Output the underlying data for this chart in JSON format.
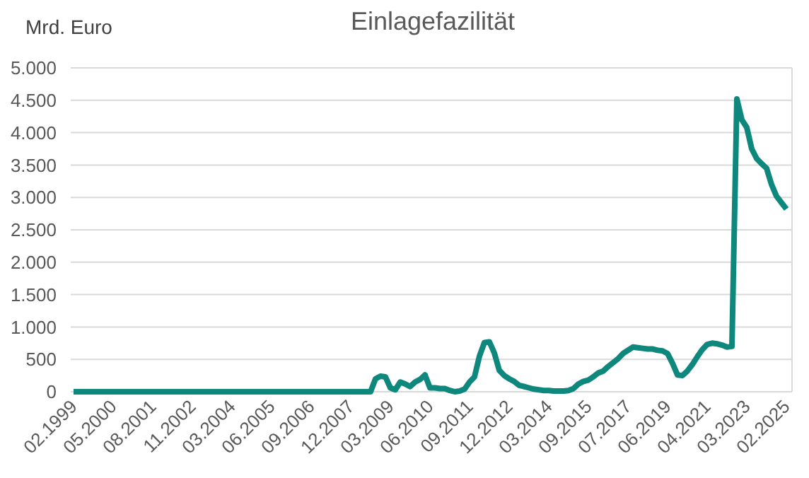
{
  "chart_data": {
    "type": "line",
    "title": "Einlagefazilität",
    "ylabel": "Mrd. Euro",
    "categories": [
      "02.1999",
      null,
      null,
      null,
      null,
      null,
      null,
      null,
      "05.2000",
      null,
      null,
      null,
      null,
      null,
      null,
      null,
      "08.2001",
      null,
      null,
      null,
      null,
      null,
      null,
      null,
      "11.2002",
      null,
      null,
      null,
      null,
      null,
      null,
      null,
      "03.2004",
      null,
      null,
      null,
      null,
      null,
      null,
      null,
      "06.2005",
      null,
      null,
      null,
      null,
      null,
      null,
      null,
      "09.2006",
      null,
      null,
      null,
      null,
      null,
      null,
      null,
      "12.2007",
      null,
      null,
      null,
      null,
      null,
      null,
      null,
      "03.2009",
      null,
      null,
      null,
      null,
      null,
      null,
      null,
      "06.2010",
      null,
      null,
      null,
      null,
      null,
      null,
      null,
      "09.2011",
      null,
      null,
      null,
      null,
      null,
      null,
      null,
      "12.2012",
      null,
      null,
      null,
      null,
      null,
      null,
      null,
      "03.2014",
      null,
      null,
      null,
      null,
      null,
      null,
      null,
      "09.2015",
      null,
      null,
      null,
      null,
      null,
      null,
      null,
      "07.2017",
      null,
      null,
      null,
      null,
      null,
      null,
      null,
      "06.2019",
      null,
      null,
      null,
      null,
      null,
      null,
      null,
      "04.2021",
      null,
      null,
      null,
      null,
      null,
      null,
      null,
      "03.2023",
      null,
      null,
      null,
      null,
      null,
      null,
      null,
      "02.2025"
    ],
    "series": [
      {
        "color": "#0e877c",
        "values": [
          0,
          0,
          0,
          0,
          0,
          0,
          0,
          0,
          0,
          0,
          0,
          0,
          0,
          0,
          0,
          0,
          0,
          0,
          0,
          0,
          0,
          0,
          0,
          0,
          0,
          0,
          0,
          0,
          0,
          0,
          0,
          0,
          0,
          0,
          0,
          0,
          0,
          0,
          0,
          0,
          0,
          0,
          0,
          0,
          0,
          0,
          0,
          0,
          0,
          0,
          0,
          0,
          0,
          0,
          0,
          0,
          0,
          0,
          0,
          0,
          0,
          200,
          240,
          230,
          60,
          30,
          150,
          120,
          80,
          150,
          190,
          260,
          60,
          60,
          50,
          50,
          20,
          0,
          10,
          40,
          150,
          230,
          550,
          760,
          770,
          600,
          330,
          250,
          200,
          160,
          100,
          80,
          60,
          40,
          30,
          20,
          20,
          10,
          10,
          10,
          20,
          50,
          120,
          160,
          180,
          230,
          290,
          320,
          390,
          450,
          510,
          590,
          640,
          690,
          680,
          670,
          660,
          660,
          640,
          630,
          590,
          440,
          260,
          250,
          320,
          420,
          540,
          650,
          730,
          750,
          740,
          720,
          690,
          700,
          4520,
          4200,
          4080,
          3750,
          3600,
          3520,
          3450,
          3200,
          3020,
          2920,
          2820
        ]
      }
    ],
    "ylim": [
      0,
      5000
    ],
    "yticks": [
      0,
      {
        "value": 500,
        "label": "500"
      },
      {
        "value": 1000,
        "label": "1.000"
      },
      {
        "value": 1500,
        "label": "1.500"
      },
      {
        "value": 2000,
        "label": "2.000"
      },
      {
        "value": 2500,
        "label": "2.500"
      },
      {
        "value": 3000,
        "label": "3.000"
      },
      {
        "value": 3500,
        "label": "3.500"
      },
      {
        "value": 4000,
        "label": "4.000"
      },
      {
        "value": 4500,
        "label": "4.500"
      },
      {
        "value": 5000,
        "label": "5.000"
      }
    ],
    "grid": "y",
    "marker": "none",
    "line_style": "solid"
  }
}
